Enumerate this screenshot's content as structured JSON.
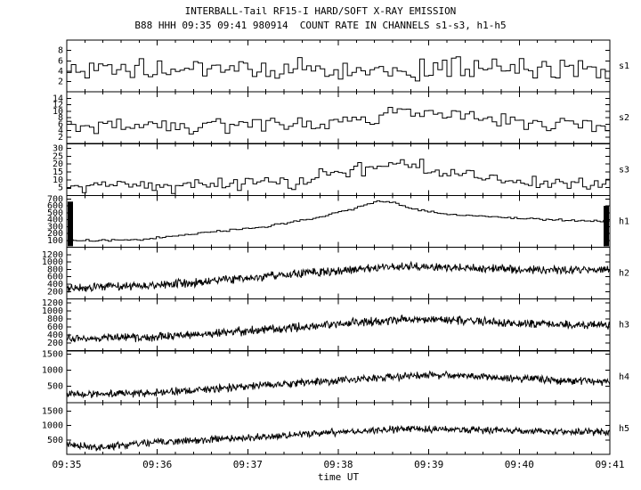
{
  "chart_data": {
    "type": "line",
    "title": "INTERBALL-Tail RF15-I HARD/SOFT X-RAY EMISSION",
    "subtitle": "B88 HHH 09:35 09:41 980914  COUNT RATE IN CHANNELS s1-s3, h1-h5",
    "xlabel": "time UT",
    "x_range": [
      0,
      6
    ],
    "x_tick_labels": [
      "09:35",
      "09:36",
      "09:37",
      "09:38",
      "09:39",
      "09:40",
      "09:41"
    ],
    "grid": false,
    "legend": "none",
    "panels": [
      {
        "label": "s1",
        "plot_style": "step",
        "ylim": [
          0,
          10
        ],
        "yticks": [
          2,
          4,
          6,
          8
        ],
        "bins": 120,
        "noise_amp": 2.6,
        "trend": [
          [
            0,
            4.3
          ],
          [
            6,
            4.3
          ]
        ]
      },
      {
        "label": "s2",
        "plot_style": "step",
        "ylim": [
          0,
          16
        ],
        "yticks": [
          2,
          4,
          6,
          8,
          10,
          12,
          14
        ],
        "bins": 120,
        "noise_amp": 2.8,
        "trend": [
          [
            0,
            5
          ],
          [
            2,
            5.5
          ],
          [
            3,
            7
          ],
          [
            3.7,
            9.5
          ],
          [
            4.2,
            8.5
          ],
          [
            5,
            6.5
          ],
          [
            6,
            6
          ]
        ]
      },
      {
        "label": "s3",
        "plot_style": "step",
        "ylim": [
          0,
          33
        ],
        "yticks": [
          5,
          10,
          15,
          20,
          25,
          30
        ],
        "bins": 140,
        "noise_amp": 5.5,
        "trend": [
          [
            0,
            6
          ],
          [
            1.5,
            6.5
          ],
          [
            2.5,
            9
          ],
          [
            3.2,
            16
          ],
          [
            3.6,
            20
          ],
          [
            3.9,
            18
          ],
          [
            4.4,
            13
          ],
          [
            5,
            9
          ],
          [
            6,
            8
          ]
        ]
      },
      {
        "label": "h1",
        "plot_style": "step",
        "ylim": [
          0,
          750
        ],
        "yticks": [
          100,
          200,
          300,
          400,
          500,
          600,
          700
        ],
        "bins": 170,
        "noise_amp": 18,
        "edge_saturation": true,
        "trend": [
          [
            0,
            95
          ],
          [
            0.8,
            110
          ],
          [
            1.5,
            205
          ],
          [
            2.2,
            300
          ],
          [
            2.8,
            430
          ],
          [
            3.2,
            570
          ],
          [
            3.45,
            665
          ],
          [
            3.6,
            650
          ],
          [
            3.8,
            560
          ],
          [
            4.2,
            480
          ],
          [
            4.8,
            430
          ],
          [
            5.5,
            390
          ],
          [
            6,
            375
          ]
        ]
      },
      {
        "label": "h2",
        "plot_style": "line",
        "ylim": [
          0,
          1400
        ],
        "yticks": [
          200,
          400,
          600,
          800,
          1000,
          1200
        ],
        "points": 900,
        "noise_amp": 140,
        "trend": [
          [
            0,
            300
          ],
          [
            1,
            380
          ],
          [
            2,
            560
          ],
          [
            2.8,
            720
          ],
          [
            3.4,
            850
          ],
          [
            3.9,
            880
          ],
          [
            4.4,
            840
          ],
          [
            5,
            790
          ],
          [
            6,
            800
          ]
        ]
      },
      {
        "label": "h3",
        "plot_style": "line",
        "ylim": [
          0,
          1300
        ],
        "yticks": [
          200,
          400,
          600,
          800,
          1000,
          1200
        ],
        "points": 900,
        "noise_amp": 130,
        "trend": [
          [
            0,
            300
          ],
          [
            1,
            350
          ],
          [
            2,
            500
          ],
          [
            3,
            670
          ],
          [
            3.7,
            790
          ],
          [
            4.1,
            790
          ],
          [
            4.6,
            730
          ],
          [
            5.2,
            660
          ],
          [
            6,
            640
          ]
        ]
      },
      {
        "label": "h4",
        "plot_style": "line",
        "ylim": [
          0,
          1600
        ],
        "yticks": [
          500,
          1000,
          1500
        ],
        "points": 900,
        "noise_amp": 140,
        "trend": [
          [
            0,
            230
          ],
          [
            1,
            310
          ],
          [
            2,
            500
          ],
          [
            3,
            680
          ],
          [
            3.8,
            830
          ],
          [
            4.3,
            850
          ],
          [
            5,
            730
          ],
          [
            6,
            620
          ]
        ]
      },
      {
        "label": "h5",
        "plot_style": "line",
        "ylim": [
          0,
          1800
        ],
        "yticks": [
          500,
          1000,
          1500
        ],
        "points": 900,
        "noise_amp": 150,
        "trend": [
          [
            0,
            360
          ],
          [
            0.35,
            240
          ],
          [
            1,
            420
          ],
          [
            2,
            580
          ],
          [
            3,
            780
          ],
          [
            3.7,
            880
          ],
          [
            4.2,
            880
          ],
          [
            5,
            800
          ],
          [
            6,
            780
          ]
        ]
      }
    ]
  }
}
